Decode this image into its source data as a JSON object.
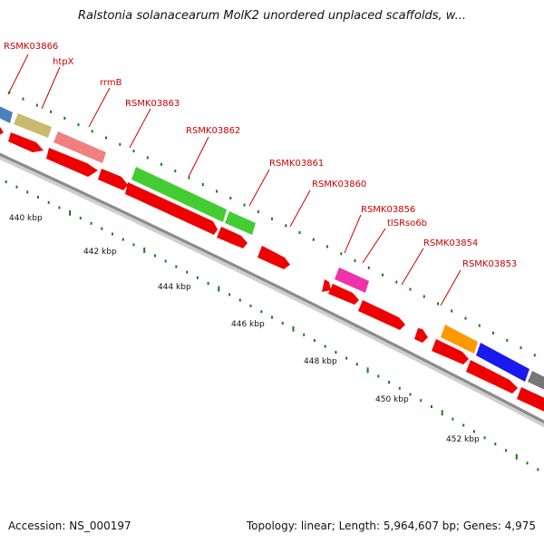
{
  "header": {
    "title": "Ralstonia solanacearum MolK2 unordered unplaced scaffolds, w..."
  },
  "footer": {
    "accession": "Accession: NS_000197",
    "summary": "Topology: linear; Length: 5,964,607 bp; Genes: 4,975"
  },
  "ruler": {
    "labels": [
      "440 kbp",
      "442 kbp",
      "444 kbp",
      "446 kbp",
      "448 kbp",
      "450 kbp",
      "452 kbp"
    ]
  },
  "genes": [
    {
      "name": "RSMK03866"
    },
    {
      "name": "htpX"
    },
    {
      "name": "rrmB"
    },
    {
      "name": "RSMK03863"
    },
    {
      "name": "RSMK03862"
    },
    {
      "name": "RSMK03861"
    },
    {
      "name": "RSMK03860"
    },
    {
      "name": "RSMK03856"
    },
    {
      "name": "tlSRso6b"
    },
    {
      "name": "RSMK03854"
    },
    {
      "name": "RSMK03853"
    }
  ],
  "colors": {
    "cds": "#ee0000",
    "backbone": "#888888",
    "ruler": "#137c13",
    "label": "#cc0000",
    "features": [
      "#4a7fc0",
      "#c8bb6e",
      "#f08080",
      "#44cc33",
      "#44cc33",
      "#ee33aa",
      "#ff9900",
      "#1a1aee",
      "#777777"
    ]
  }
}
